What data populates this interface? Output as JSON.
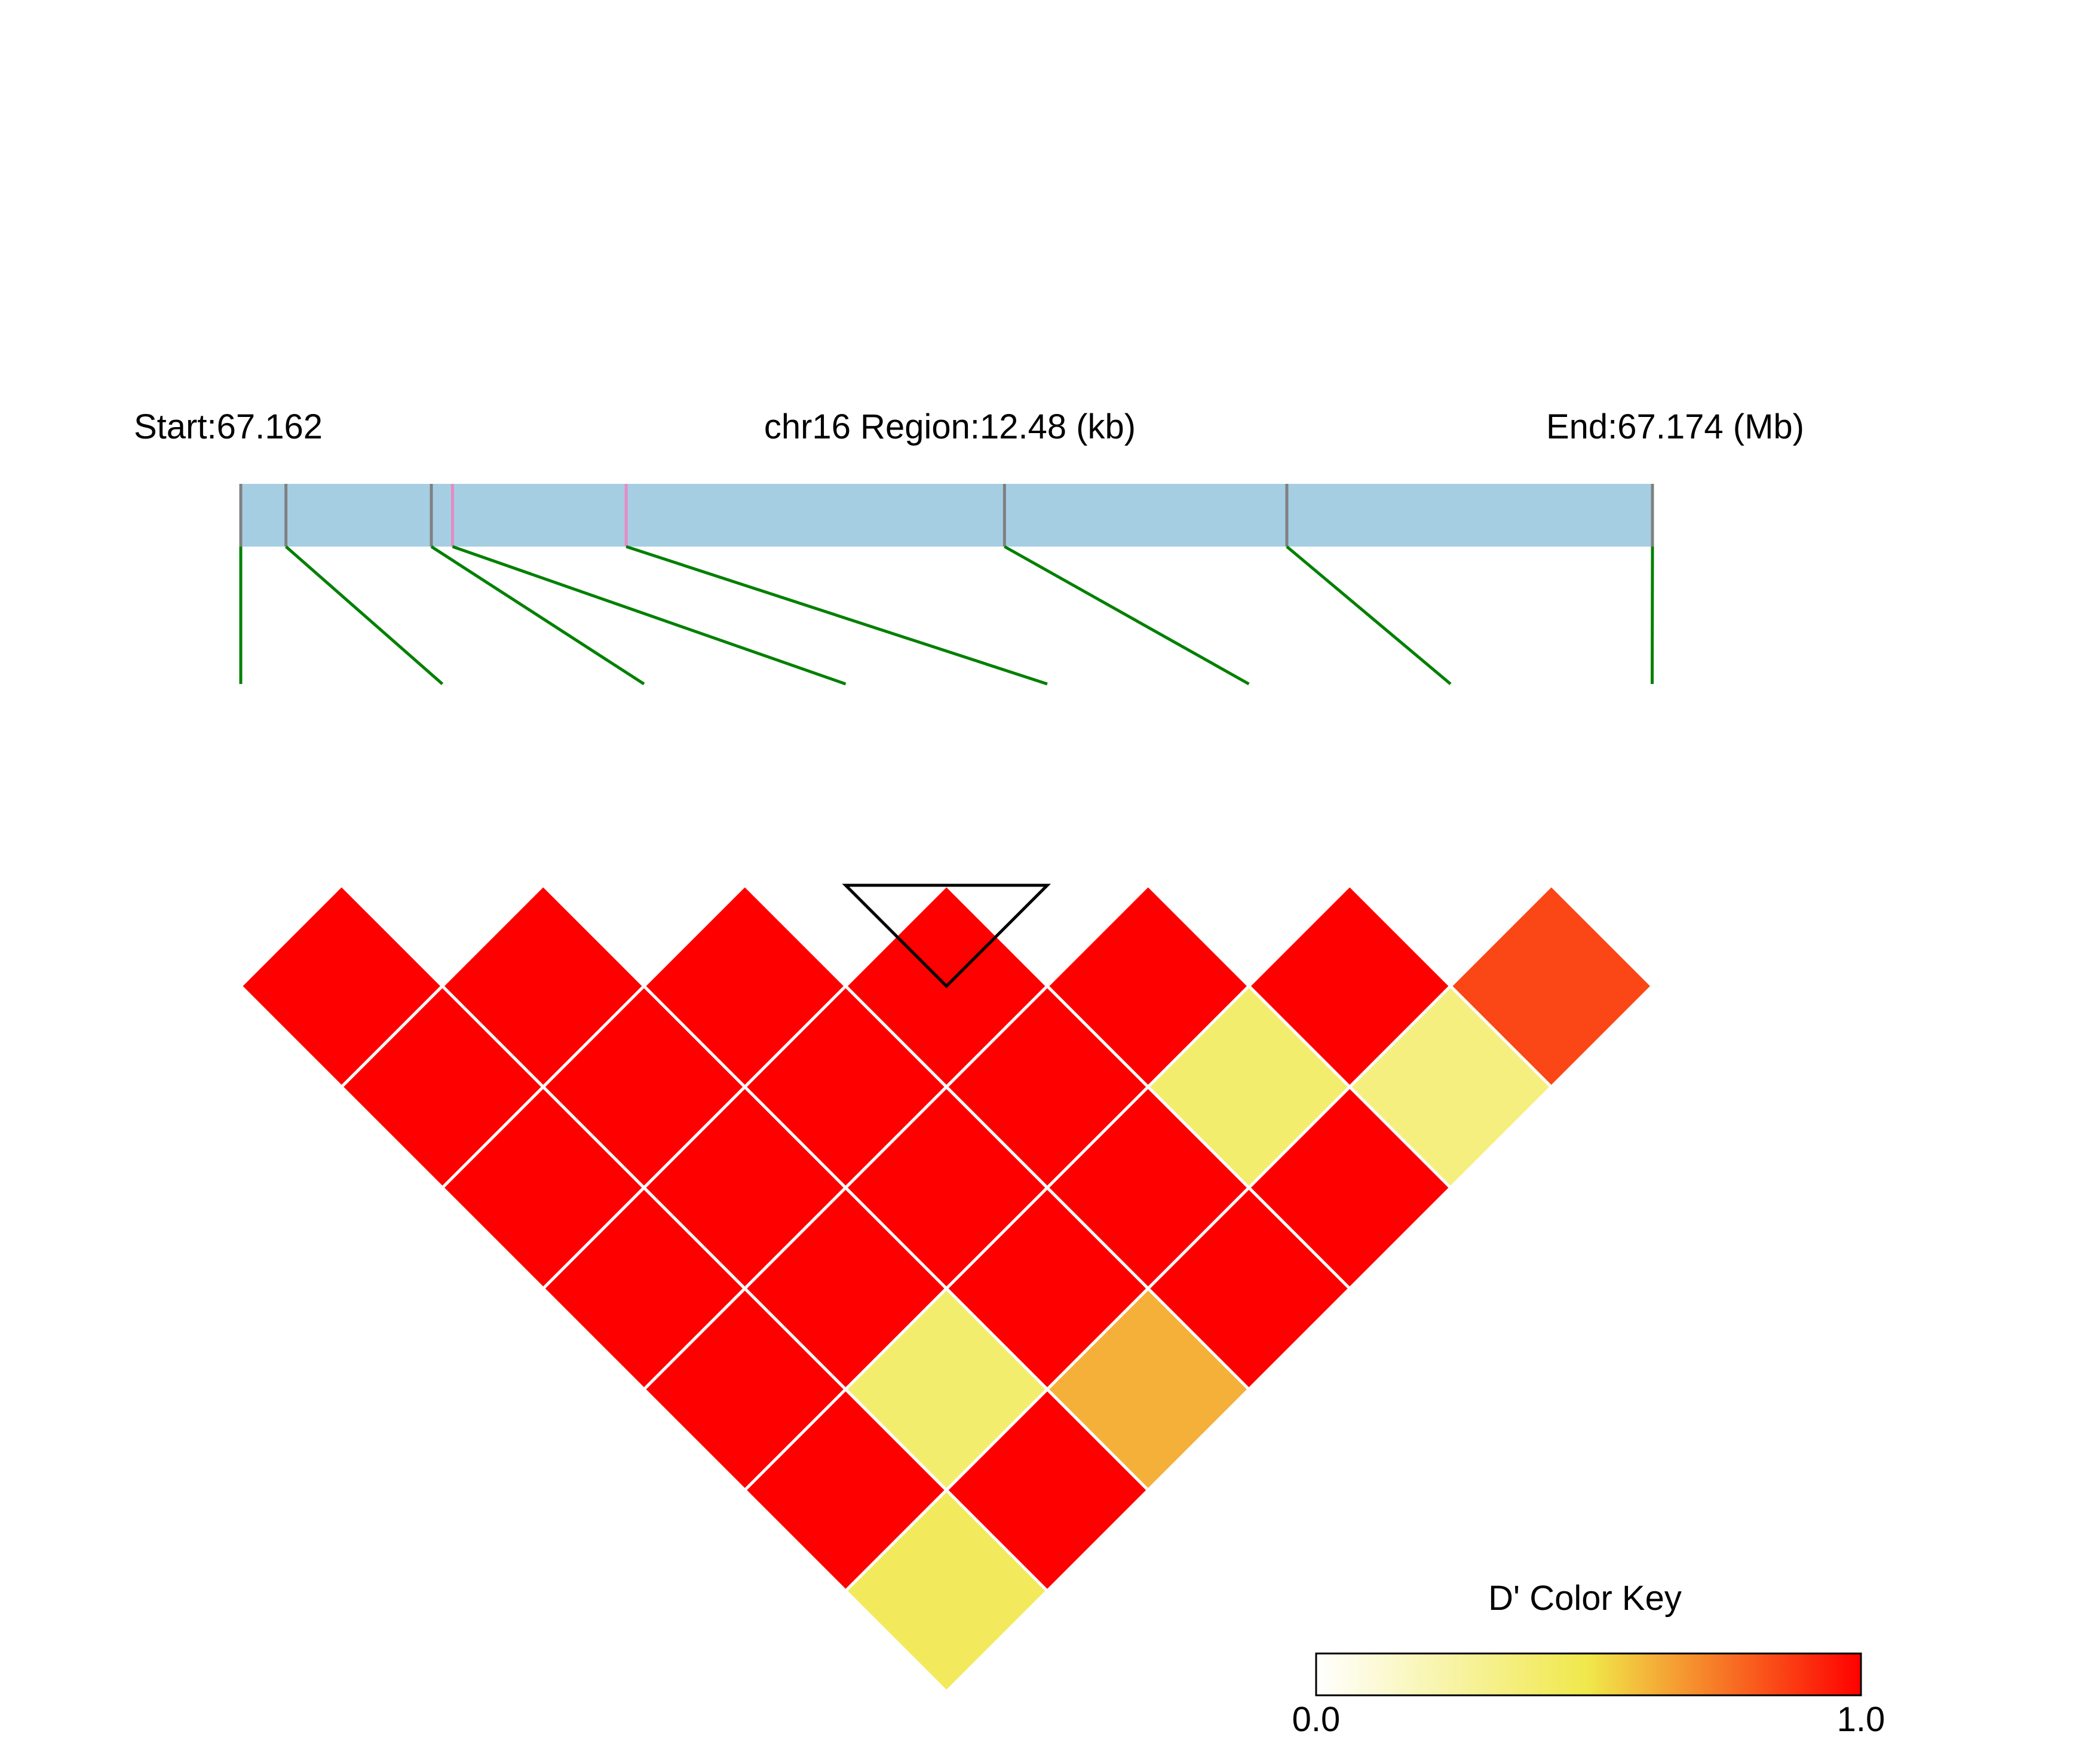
{
  "chart_data": {
    "type": "heatmap",
    "chromosome": "chr16",
    "header": {
      "start_label": "Start:67.162",
      "region_label": "chr16 Region:12.48 (kb)",
      "end_label": "End:67.174 (Mb)"
    },
    "region": {
      "start_mb": 67.162,
      "end_mb": 67.174,
      "length_kb": 12.48
    },
    "snps": [
      {
        "pos_frac": 0.0,
        "highlight": false
      },
      {
        "pos_frac": 0.032,
        "highlight": false
      },
      {
        "pos_frac": 0.135,
        "highlight": false
      },
      {
        "pos_frac": 0.15,
        "highlight": true
      },
      {
        "pos_frac": 0.273,
        "highlight": true
      },
      {
        "pos_frac": 0.541,
        "highlight": false
      },
      {
        "pos_frac": 0.741,
        "highlight": false
      },
      {
        "pos_frac": 1.0,
        "highlight": false
      }
    ],
    "metric": "D'",
    "dprime_matrix": [
      [
        null,
        1.0,
        1.0,
        1.0,
        1.0,
        1.0,
        1.0,
        0.45
      ],
      [
        null,
        null,
        1.0,
        1.0,
        1.0,
        1.0,
        0.4,
        1.0
      ],
      [
        null,
        null,
        null,
        1.0,
        1.0,
        1.0,
        1.0,
        0.62
      ],
      [
        null,
        null,
        null,
        null,
        1.0,
        1.0,
        1.0,
        1.0
      ],
      [
        null,
        null,
        null,
        null,
        null,
        1.0,
        0.4,
        1.0
      ],
      [
        null,
        null,
        null,
        null,
        null,
        null,
        1.0,
        0.35
      ],
      [
        null,
        null,
        null,
        null,
        null,
        null,
        null,
        0.85
      ],
      [
        null,
        null,
        null,
        null,
        null,
        null,
        null,
        null
      ]
    ],
    "ld_block": {
      "first_snp": 3,
      "last_snp": 4
    },
    "color_key": {
      "title": "D' Color Key",
      "min_label": "0.0",
      "max_label": "1.0",
      "min": 0.0,
      "max": 1.0,
      "stops": [
        "#ffffff",
        "#f0e84a",
        "#ff0000"
      ]
    },
    "colors": {
      "region_bar": "#a6cee3",
      "snp_tick": "#808080",
      "snp_tick_highlight": "#e78ac3",
      "connector": "#008000",
      "cell_border": "#ffffff",
      "block_outline": "#000000"
    }
  }
}
